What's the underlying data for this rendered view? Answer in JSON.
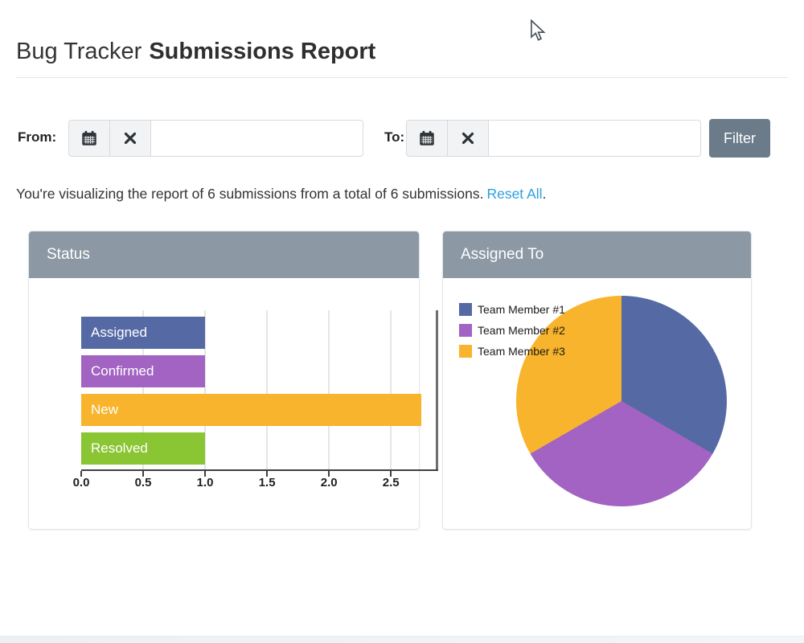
{
  "header": {
    "title_regular": "Bug Tracker",
    "title_bold": "Submissions Report"
  },
  "filter_bar": {
    "from_label": "From:",
    "to_label": "To:",
    "from_input_value": "",
    "to_input_value": "",
    "filter_button_label": "Filter"
  },
  "summary": {
    "text": "You're visualizing the report of 6 submissions from a total of 6 submissions.",
    "link_label": "Reset All",
    "suffix": "."
  },
  "colors": {
    "panel_header_bg": "#8c98a4",
    "filter_button_bg": "#6b7b8a",
    "link_blue": "#2e9fe0",
    "series_blue": "#5569a4",
    "series_purple": "#a263c3",
    "series_yellow": "#f7b42c",
    "series_green": "#8ac533"
  },
  "chart_data": [
    {
      "type": "bar",
      "title": "Status",
      "orientation": "horizontal",
      "categories": [
        "Assigned",
        "Confirmed",
        "New",
        "Resolved"
      ],
      "values": [
        1,
        1,
        3,
        1
      ],
      "bar_colors": [
        "#5569a4",
        "#a263c3",
        "#f7b42c",
        "#8ac533"
      ],
      "x_ticks": [
        0.0,
        0.5,
        1.0,
        1.5,
        2.0,
        2.5
      ],
      "x_tick_labels": [
        "0.0",
        "0.5",
        "1.0",
        "1.5",
        "2.0",
        "2.5"
      ],
      "xlim": [
        0,
        2.875
      ],
      "grid": true,
      "legend_position": "none",
      "ylabel": "",
      "xlabel": ""
    },
    {
      "type": "pie",
      "title": "Assigned To",
      "labels": [
        "Team Member #1",
        "Team Member #2",
        "Team Member #3"
      ],
      "values": [
        2,
        2,
        2
      ],
      "colors": [
        "#5569a4",
        "#a263c3",
        "#f7b42c"
      ],
      "legend_position": "top-left",
      "start_angle_deg": 0,
      "direction": "clockwise"
    }
  ]
}
